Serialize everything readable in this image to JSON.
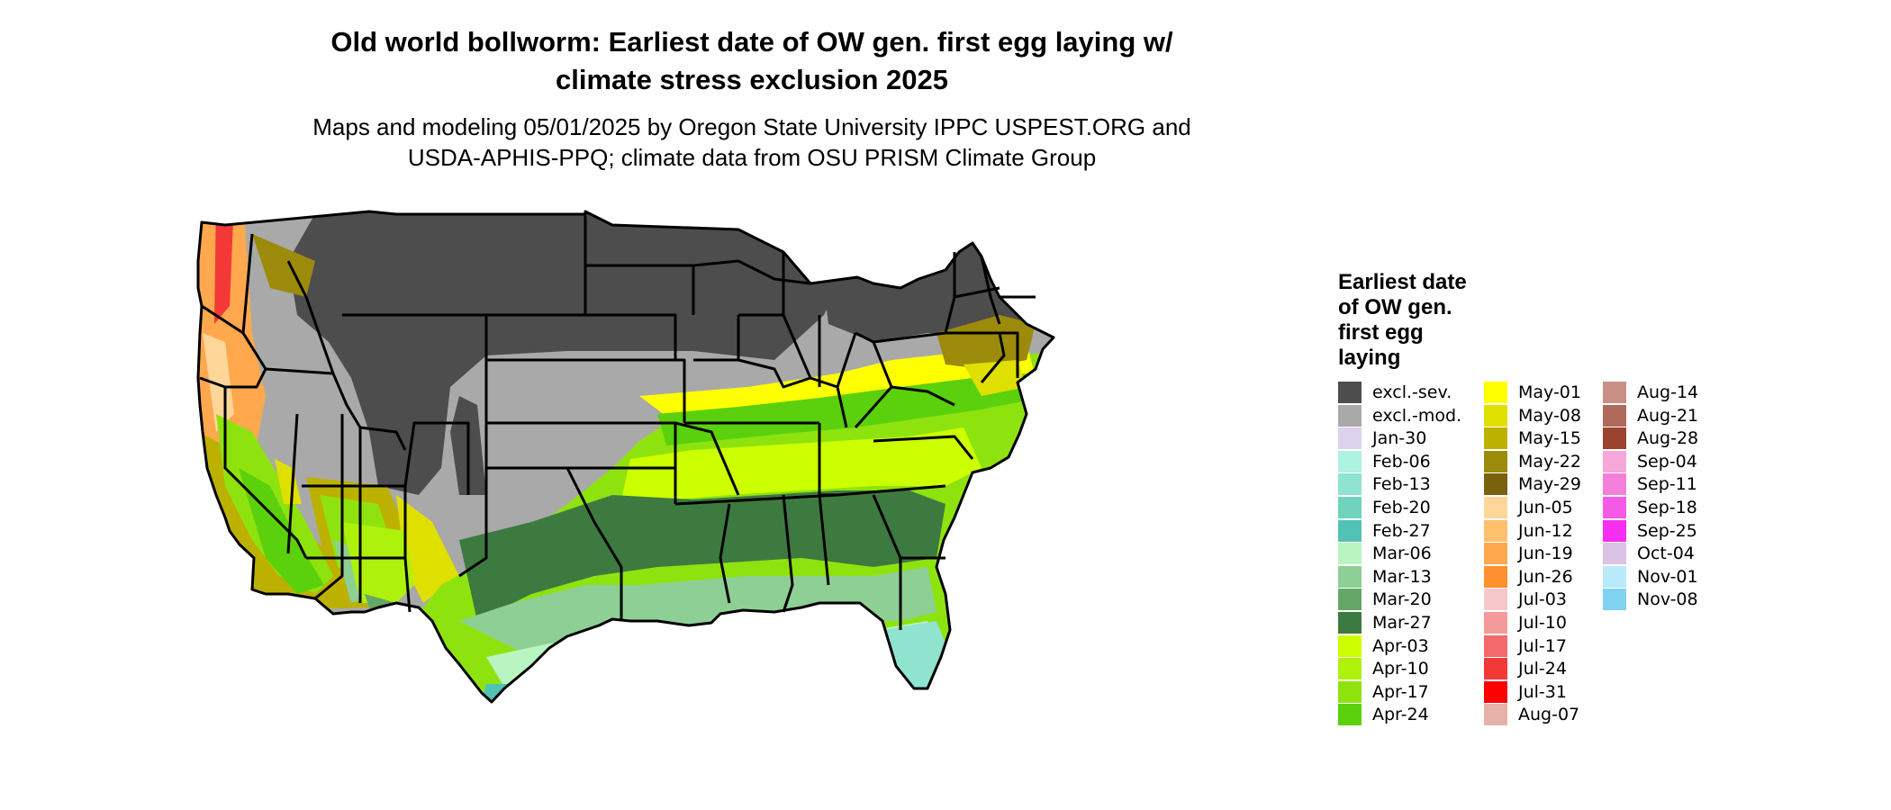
{
  "title_line1": "Old world bollworm: Earliest date of OW gen. first egg laying w/",
  "title_line2": "climate stress exclusion 2025",
  "subtitle_line1": "Maps and modeling 05/01/2025 by Oregon State University IPPC USPEST.ORG and",
  "subtitle_line2": "USDA-APHIS-PPQ; climate data from OSU PRISM Climate Group",
  "legend": {
    "title_lines": [
      "Earliest date",
      "of OW gen.",
      "first egg",
      "laying"
    ],
    "columns": [
      [
        {
          "label": "excl.-sev.",
          "color": "#4d4d4d"
        },
        {
          "label": "excl.-mod.",
          "color": "#a9a9a9"
        },
        {
          "label": "Jan-30",
          "color": "#ddd2ee"
        },
        {
          "label": "Feb-06",
          "color": "#aef2e0"
        },
        {
          "label": "Feb-13",
          "color": "#8fe3cf"
        },
        {
          "label": "Feb-20",
          "color": "#6fd3bd"
        },
        {
          "label": "Feb-27",
          "color": "#52c2b5"
        },
        {
          "label": "Mar-06",
          "color": "#b9f5c0"
        },
        {
          "label": "Mar-13",
          "color": "#8ecf95"
        },
        {
          "label": "Mar-20",
          "color": "#65a767"
        },
        {
          "label": "Mar-27",
          "color": "#3d7a40"
        },
        {
          "label": "Apr-03",
          "color": "#ccff00"
        },
        {
          "label": "Apr-10",
          "color": "#aef20c"
        },
        {
          "label": "Apr-17",
          "color": "#8ee30f"
        },
        {
          "label": "Apr-24",
          "color": "#5ad10c"
        }
      ],
      [
        {
          "label": "May-01",
          "color": "#ffff00"
        },
        {
          "label": "May-08",
          "color": "#e0e000"
        },
        {
          "label": "May-15",
          "color": "#bdb100"
        },
        {
          "label": "May-22",
          "color": "#9c8b0a"
        },
        {
          "label": "May-29",
          "color": "#7b600e"
        },
        {
          "label": "Jun-05",
          "color": "#ffd69a"
        },
        {
          "label": "Jun-12",
          "color": "#ffc06e"
        },
        {
          "label": "Jun-19",
          "color": "#ffa84e"
        },
        {
          "label": "Jun-26",
          "color": "#ff9030"
        },
        {
          "label": "Jul-03",
          "color": "#f6c8cc"
        },
        {
          "label": "Jul-10",
          "color": "#f59a9a"
        },
        {
          "label": "Jul-17",
          "color": "#f46a6a"
        },
        {
          "label": "Jul-24",
          "color": "#f33838"
        },
        {
          "label": "Jul-31",
          "color": "#ff0000"
        },
        {
          "label": "Aug-07",
          "color": "#e6b2a8"
        }
      ],
      [
        {
          "label": "Aug-14",
          "color": "#c98f84"
        },
        {
          "label": "Aug-21",
          "color": "#b06a5c"
        },
        {
          "label": "Aug-28",
          "color": "#9c4330"
        },
        {
          "label": "Sep-04",
          "color": "#f5a8d9"
        },
        {
          "label": "Sep-11",
          "color": "#f580dc"
        },
        {
          "label": "Sep-18",
          "color": "#f55ae6"
        },
        {
          "label": "Sep-25",
          "color": "#f52ff2"
        },
        {
          "label": "Oct-04",
          "color": "#dcc3e6"
        },
        {
          "label": "Nov-01",
          "color": "#b9eafa"
        },
        {
          "label": "Nov-08",
          "color": "#80d2f0"
        }
      ]
    ]
  },
  "map": {
    "state_border_color": "#000000"
  }
}
